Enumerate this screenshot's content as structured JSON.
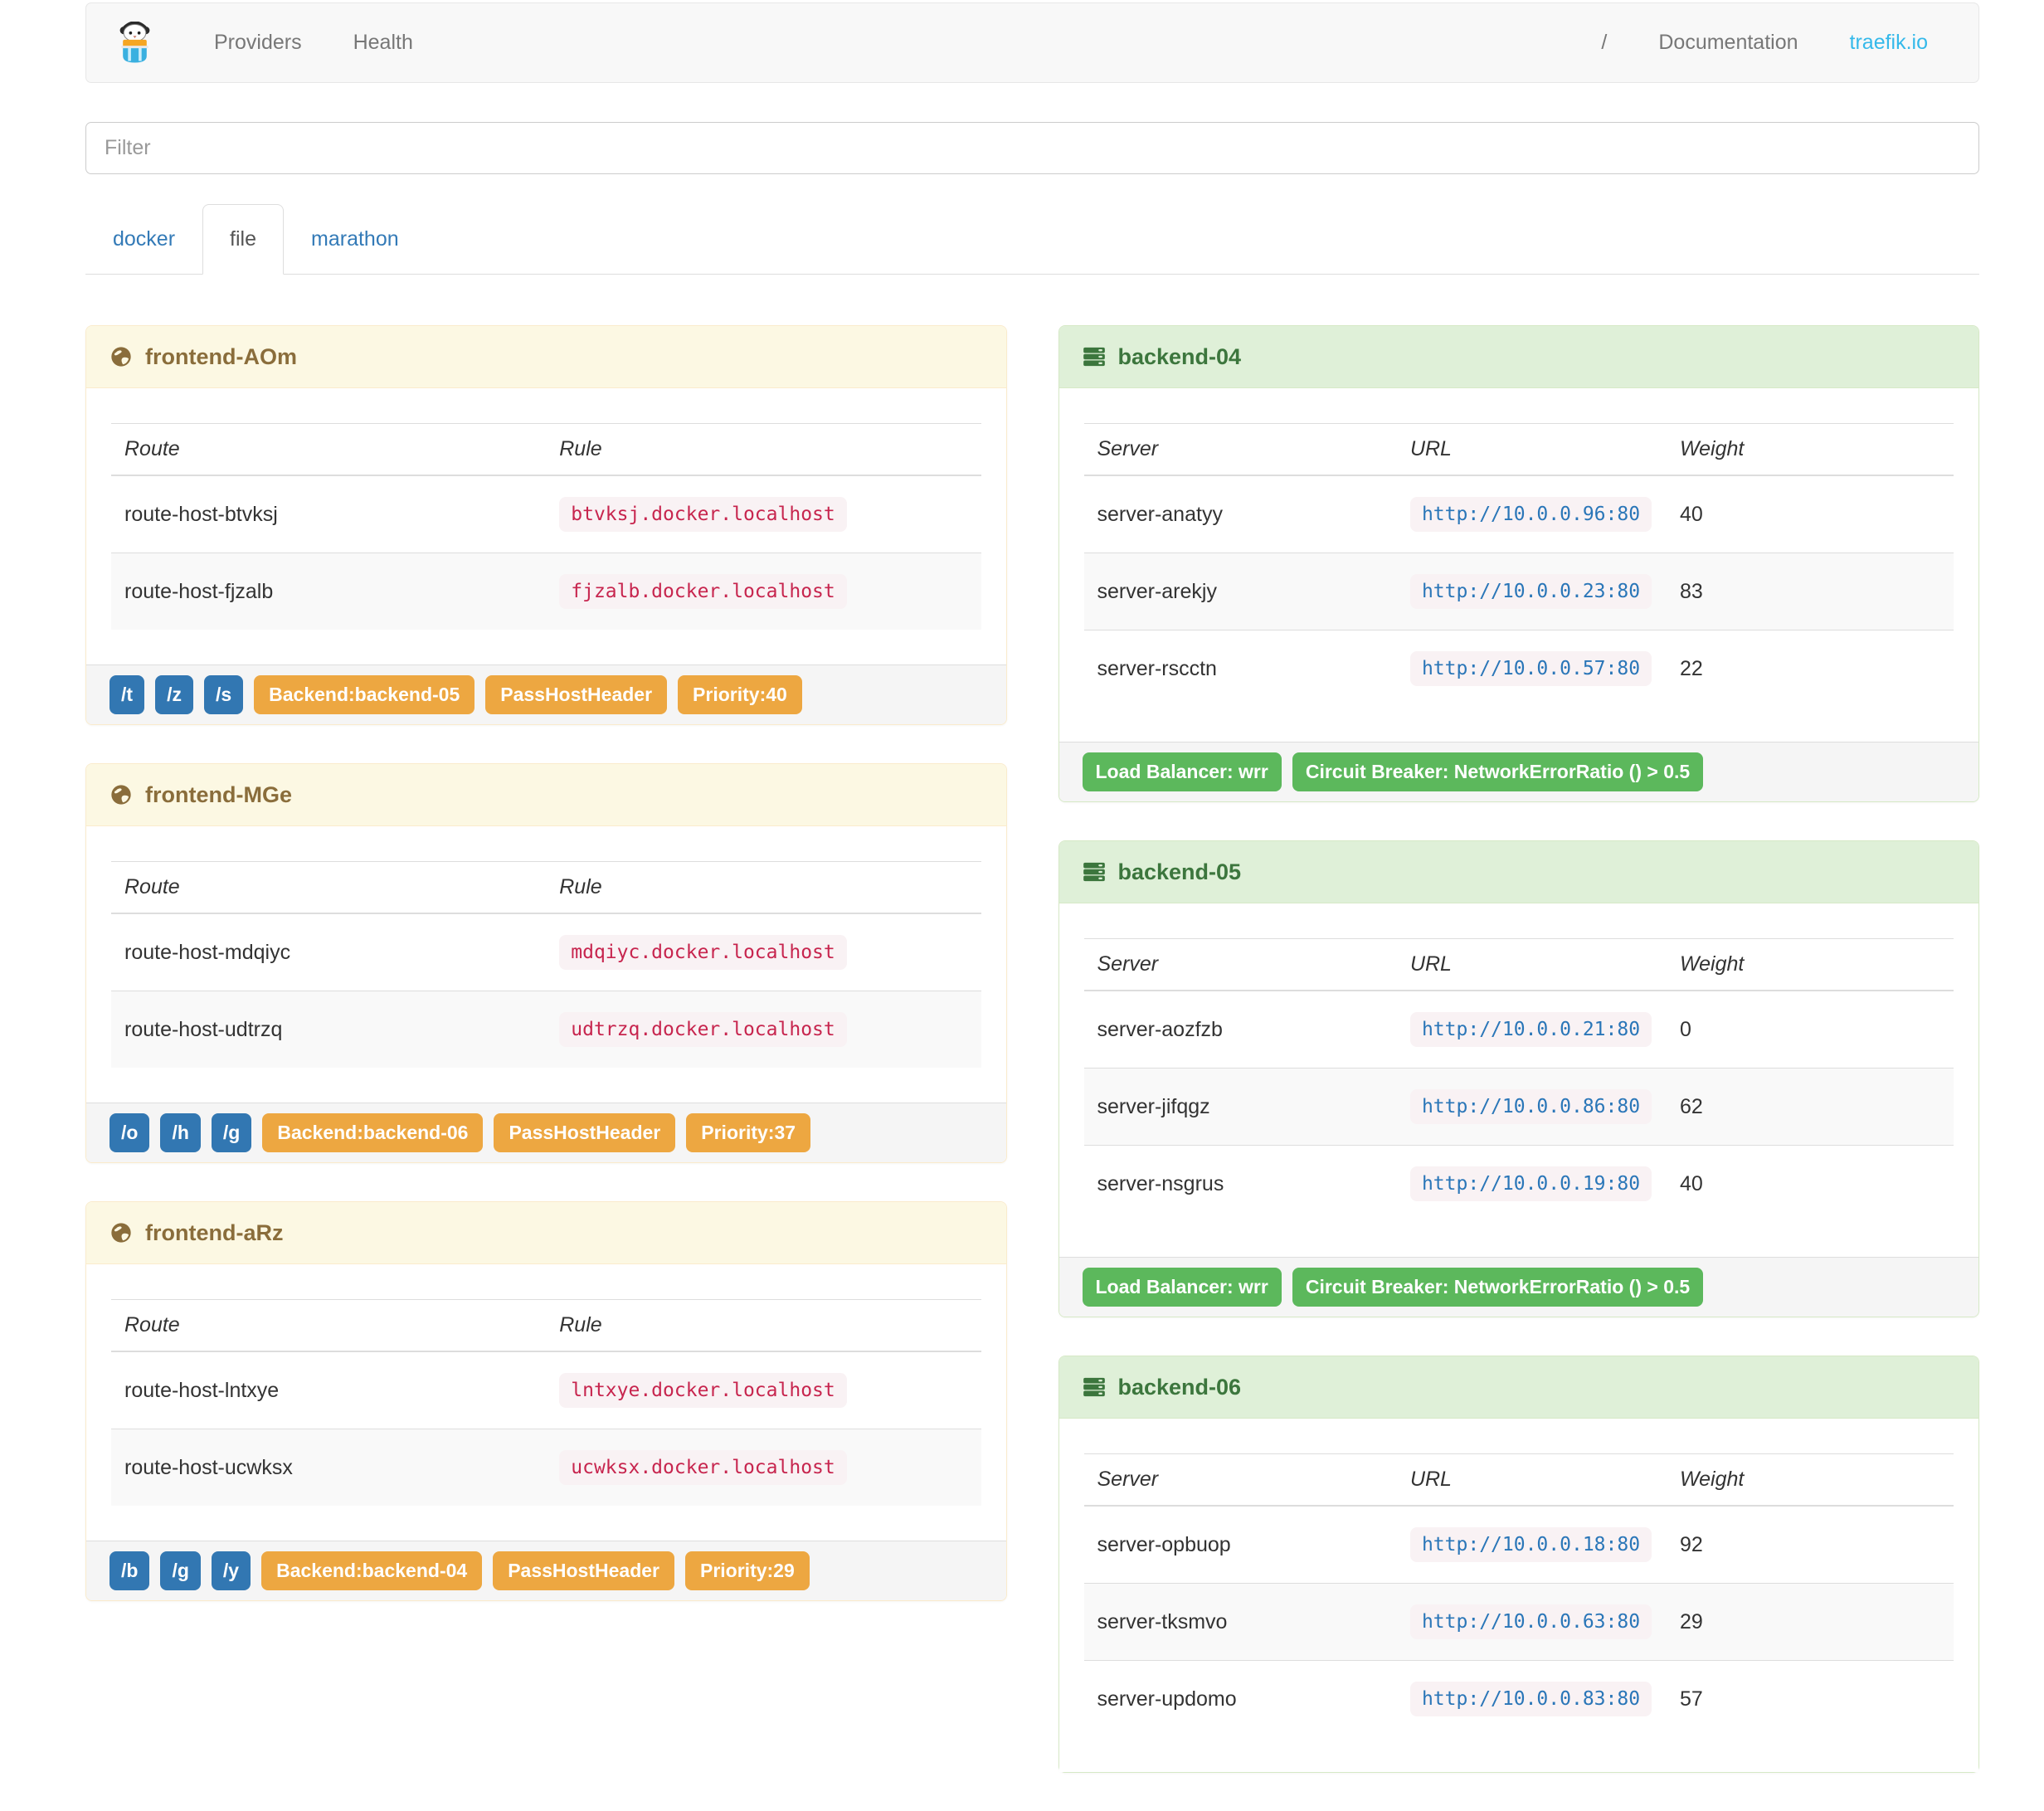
{
  "navbar": {
    "brand_icon": "traefik-logo",
    "left_links": [
      "Providers",
      "Health"
    ],
    "right_links": {
      "slash": "/",
      "documentation": "Documentation",
      "site": "traefik.io"
    }
  },
  "filter": {
    "placeholder": "Filter"
  },
  "tabs": [
    {
      "label": "docker",
      "active": false
    },
    {
      "label": "file",
      "active": true
    },
    {
      "label": "marathon",
      "active": false
    }
  ],
  "icons": {
    "frontend": "globe-icon",
    "backend": "server-icon"
  },
  "frontends": [
    {
      "title": "frontend-AOm",
      "columns": [
        "Route",
        "Rule"
      ],
      "routes": [
        {
          "route": "route-host-btvksj",
          "rule": "btvksj.docker.localhost"
        },
        {
          "route": "route-host-fjzalb",
          "rule": "fjzalb.docker.localhost"
        }
      ],
      "entry_labels": [
        "/t",
        "/z",
        "/s"
      ],
      "tags": [
        "Backend:backend-05",
        "PassHostHeader",
        "Priority:40"
      ]
    },
    {
      "title": "frontend-MGe",
      "columns": [
        "Route",
        "Rule"
      ],
      "routes": [
        {
          "route": "route-host-mdqiyc",
          "rule": "mdqiyc.docker.localhost"
        },
        {
          "route": "route-host-udtrzq",
          "rule": "udtrzq.docker.localhost"
        }
      ],
      "entry_labels": [
        "/o",
        "/h",
        "/g"
      ],
      "tags": [
        "Backend:backend-06",
        "PassHostHeader",
        "Priority:37"
      ]
    },
    {
      "title": "frontend-aRz",
      "columns": [
        "Route",
        "Rule"
      ],
      "routes": [
        {
          "route": "route-host-lntxye",
          "rule": "lntxye.docker.localhost"
        },
        {
          "route": "route-host-ucwksx",
          "rule": "ucwksx.docker.localhost"
        }
      ],
      "entry_labels": [
        "/b",
        "/g",
        "/y"
      ],
      "tags": [
        "Backend:backend-04",
        "PassHostHeader",
        "Priority:29"
      ]
    }
  ],
  "backends": [
    {
      "title": "backend-04",
      "columns": [
        "Server",
        "URL",
        "Weight"
      ],
      "servers": [
        {
          "server": "server-anatyy",
          "url": "http://10.0.0.96:80",
          "weight": "40"
        },
        {
          "server": "server-arekjy",
          "url": "http://10.0.0.23:80",
          "weight": "83"
        },
        {
          "server": "server-rscctn",
          "url": "http://10.0.0.57:80",
          "weight": "22"
        }
      ],
      "tags": [
        "Load Balancer: wrr",
        "Circuit Breaker: NetworkErrorRatio () > 0.5"
      ]
    },
    {
      "title": "backend-05",
      "columns": [
        "Server",
        "URL",
        "Weight"
      ],
      "servers": [
        {
          "server": "server-aozfzb",
          "url": "http://10.0.0.21:80",
          "weight": "0"
        },
        {
          "server": "server-jifqgz",
          "url": "http://10.0.0.86:80",
          "weight": "62"
        },
        {
          "server": "server-nsgrus",
          "url": "http://10.0.0.19:80",
          "weight": "40"
        }
      ],
      "tags": [
        "Load Balancer: wrr",
        "Circuit Breaker: NetworkErrorRatio () > 0.5"
      ]
    },
    {
      "title": "backend-06",
      "columns": [
        "Server",
        "URL",
        "Weight"
      ],
      "servers": [
        {
          "server": "server-opbuop",
          "url": "http://10.0.0.18:80",
          "weight": "92"
        },
        {
          "server": "server-tksmvo",
          "url": "http://10.0.0.63:80",
          "weight": "29"
        },
        {
          "server": "server-updomo",
          "url": "http://10.0.0.83:80",
          "weight": "57"
        }
      ],
      "tags": []
    }
  ],
  "colors": {
    "brand_link": "#35b9ea",
    "link_blue": "#337ab7",
    "label_blue": "#3277b2",
    "label_orange": "#eda741",
    "label_green": "#5cb85c",
    "warning_bg": "#fcf8e3",
    "warning_text": "#8a6d3b",
    "success_bg": "#dff0d8",
    "success_text": "#3c763d",
    "rule_code": "#c7254e",
    "url_code": "#2a76b8"
  }
}
